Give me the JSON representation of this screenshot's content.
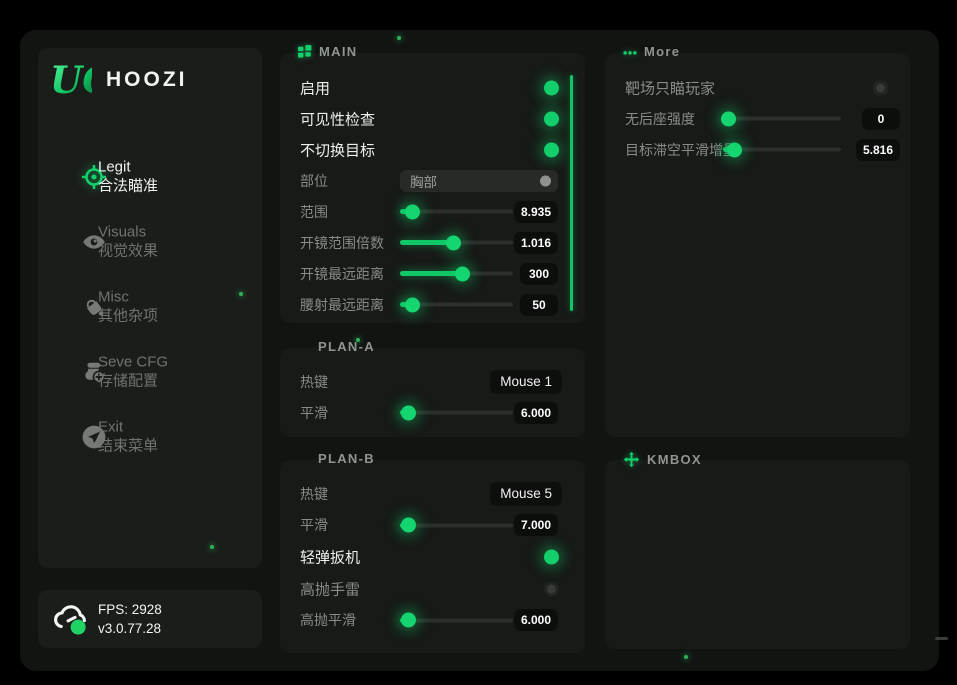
{
  "colors": {
    "accent": "#12cf6b",
    "window_bg": "#121412",
    "panel_bg": "#171a17",
    "sidebar_bg": "#1b1d1a"
  },
  "sidebar": {
    "logo_glyph": "UC",
    "logo_text": "HOOZI",
    "items": [
      {
        "name": "legit",
        "icon": "crosshair-icon",
        "label": "Legit",
        "sublabel": "合法瞄准",
        "active": true
      },
      {
        "name": "visuals",
        "icon": "eye-icon",
        "label": "Visuals",
        "sublabel": "视觉效果",
        "active": false
      },
      {
        "name": "misc",
        "icon": "paint-bucket-icon",
        "label": "Misc",
        "sublabel": "其他杂项",
        "active": false
      },
      {
        "name": "save-cfg",
        "icon": "save-cfg-icon",
        "label": "Seve CFG",
        "sublabel": "存储配置",
        "active": false
      },
      {
        "name": "exit",
        "icon": "exit-icon",
        "label": "Exit",
        "sublabel": "结束菜单",
        "active": false
      }
    ],
    "status": {
      "fps": "FPS: 2928",
      "version": "v3.0.77.28"
    }
  },
  "panels": {
    "main": {
      "title": "MAIN",
      "icon": "grid-icon",
      "scrollbar": true,
      "rows": [
        {
          "name": "enable",
          "type": "toggle",
          "label": "启用",
          "on": true
        },
        {
          "name": "visibility-check",
          "type": "toggle",
          "label": "可见性检查",
          "on": true
        },
        {
          "name": "no-switch-target",
          "type": "toggle",
          "label": "不切换目标",
          "on": true
        },
        {
          "name": "body-part",
          "type": "select",
          "label": "部位",
          "value": "胸部"
        },
        {
          "name": "range",
          "type": "slider",
          "label": "范围",
          "value": "8.935",
          "pct": 11
        },
        {
          "name": "scope-range-multiplier",
          "type": "slider",
          "label": "开镜范围倍数",
          "value": "1.016",
          "pct": 47
        },
        {
          "name": "scope-max-distance",
          "type": "slider",
          "label": "开镜最远距离",
          "value": "300",
          "pct": 55
        },
        {
          "name": "hipfire-max-distance",
          "type": "slider",
          "label": "腰射最远距离",
          "value": "50",
          "pct": 11
        }
      ]
    },
    "plan_a": {
      "title": "PLAN-A",
      "icon": null,
      "scrollbar": false,
      "rows": [
        {
          "name": "hotkey",
          "type": "hotkey",
          "label": "热键",
          "value": "Mouse 1"
        },
        {
          "name": "smooth",
          "type": "slider",
          "label": "平滑",
          "value": "6.000",
          "pct": 7
        }
      ]
    },
    "plan_b": {
      "title": "PLAN-B",
      "icon": null,
      "scrollbar": false,
      "rows": [
        {
          "name": "hotkey",
          "type": "hotkey",
          "label": "热键",
          "value": "Mouse 5"
        },
        {
          "name": "smooth",
          "type": "slider",
          "label": "平滑",
          "value": "7.000",
          "pct": 7
        },
        {
          "name": "flick-trigger",
          "type": "toggle",
          "label": "轻弹扳机",
          "on": true
        },
        {
          "name": "high-throw-grenade",
          "type": "toggle",
          "label": "高抛手雷",
          "on": false
        },
        {
          "name": "high-throw-smooth",
          "type": "slider",
          "label": "高抛平滑",
          "value": "6.000",
          "pct": 7
        }
      ]
    },
    "more": {
      "title": "More",
      "icon": "dots-icon",
      "scrollbar": false,
      "rows": [
        {
          "name": "range-only-players",
          "type": "toggle",
          "label": "靶场只瞄玩家",
          "on": false,
          "shape": "square"
        },
        {
          "name": "no-recoil-strength",
          "type": "slider",
          "label": "无后座强度",
          "value": "0",
          "pct": 4
        },
        {
          "name": "airborne-smooth-increment",
          "type": "slider",
          "label": "目标滞空平滑增量",
          "value": "5.816",
          "pct": 9
        }
      ]
    },
    "kmbox": {
      "title": "KMBOX",
      "icon": "move-icon",
      "scrollbar": false,
      "rows": []
    }
  }
}
